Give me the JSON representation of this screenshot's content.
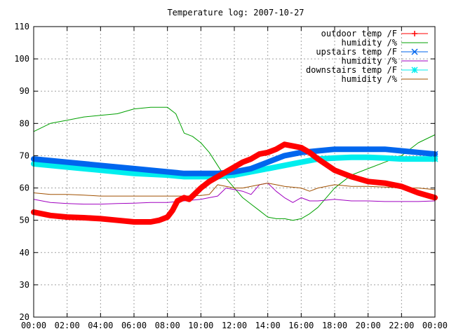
{
  "chart_data": {
    "type": "line",
    "title": "Temperature log: 2007-10-27",
    "xlabel": "",
    "ylabel": "",
    "x_ticks": [
      "00:00",
      "02:00",
      "04:00",
      "06:00",
      "08:00",
      "10:00",
      "12:00",
      "14:00",
      "16:00",
      "18:00",
      "20:00",
      "22:00",
      "00:00"
    ],
    "xlim": [
      0,
      24
    ],
    "ylim": [
      20,
      110
    ],
    "y_ticks": [
      20,
      30,
      40,
      50,
      60,
      70,
      80,
      90,
      100,
      110
    ],
    "grid": true,
    "legend_position": "top-right",
    "series": [
      {
        "name": "outdoor temp /F",
        "color": "#ff0000",
        "marker": "plus",
        "style": "thick",
        "x": [
          0,
          1,
          2,
          3,
          4,
          5,
          6,
          7,
          7.5,
          8,
          8.3,
          8.6,
          9,
          9.3,
          9.6,
          10,
          10.5,
          11,
          11.5,
          12,
          12.5,
          13,
          13.5,
          14,
          14.5,
          15,
          15.5,
          16,
          16.5,
          17,
          18,
          19,
          20,
          21,
          22,
          23,
          24
        ],
        "y": [
          52.5,
          51.5,
          51,
          50.8,
          50.5,
          50,
          49.5,
          49.5,
          50,
          51,
          53,
          56,
          57,
          56.5,
          58,
          60,
          62,
          63.5,
          65,
          66.5,
          68,
          69,
          70.5,
          71,
          72,
          73.5,
          73,
          72.5,
          71,
          69,
          65.5,
          63.5,
          62,
          61.5,
          60.5,
          58.5,
          57
        ]
      },
      {
        "name": "humidity /%",
        "color": "#00a000",
        "marker": "none",
        "style": "thin",
        "x": [
          0,
          1,
          2,
          3,
          4,
          5,
          6,
          7,
          8,
          8.5,
          9,
          9.5,
          10,
          10.5,
          11,
          11.5,
          12,
          12.5,
          13,
          13.5,
          14,
          14.5,
          15,
          15.5,
          16,
          16.5,
          17,
          17.5,
          18,
          18.5,
          19,
          20,
          21,
          22,
          23,
          24
        ],
        "y": [
          77.5,
          80,
          81,
          82,
          82.5,
          83,
          84.5,
          85,
          85,
          83,
          77,
          76,
          74,
          71,
          67,
          63,
          60,
          57,
          55,
          53,
          51,
          50.5,
          50.5,
          50,
          50.5,
          52,
          54,
          57,
          60,
          62,
          64,
          66,
          68,
          70,
          74,
          76.5
        ]
      },
      {
        "name": "upstairs temp /F",
        "color": "#0066ee",
        "marker": "cross",
        "style": "thick",
        "x": [
          0,
          2,
          4,
          6,
          8,
          9,
          10,
          11,
          12,
          13,
          14,
          15,
          16,
          17,
          18,
          19,
          20,
          21,
          22,
          23,
          24
        ],
        "y": [
          69,
          68,
          67,
          66,
          65,
          64.5,
          64.5,
          64.5,
          65,
          66,
          68,
          70,
          71,
          71.5,
          72,
          72,
          72,
          72,
          71.5,
          71,
          70.5
        ]
      },
      {
        "name": "humidity /%",
        "color": "#a000c0",
        "marker": "none",
        "style": "thin",
        "x": [
          0,
          1,
          2,
          3,
          4,
          5,
          6,
          7,
          8,
          9,
          10,
          10.5,
          11,
          11.5,
          12,
          12.5,
          13,
          13.5,
          14,
          14.5,
          15,
          15.5,
          16,
          16.5,
          17,
          18,
          19,
          20,
          21,
          22,
          23,
          24
        ],
        "y": [
          56.5,
          55.5,
          55.2,
          55,
          55,
          55.2,
          55.3,
          55.5,
          55.5,
          56,
          56.5,
          57,
          57.5,
          60,
          59.5,
          59,
          58,
          61,
          61.5,
          59,
          57,
          55.5,
          57,
          56,
          56,
          56.5,
          56,
          56,
          55.8,
          55.8,
          55.8,
          56
        ]
      },
      {
        "name": "downstairs temp /F",
        "color": "#00eeee",
        "marker": "star",
        "style": "thick",
        "x": [
          0,
          2,
          4,
          6,
          8,
          9,
          10,
          11,
          12,
          13,
          14,
          15,
          16,
          17,
          18,
          19,
          20,
          21,
          22,
          23,
          24
        ],
        "y": [
          67.5,
          66.5,
          65.5,
          64.5,
          64,
          63.5,
          63.5,
          63.5,
          64,
          65,
          66,
          67,
          68,
          69,
          69.3,
          69.5,
          69.5,
          69.3,
          69,
          69,
          69
        ]
      },
      {
        "name": "humidity /%",
        "color": "#a05000",
        "marker": "none",
        "style": "thin",
        "x": [
          0,
          1,
          2,
          3,
          4,
          5,
          6,
          7,
          8,
          9,
          10,
          10.5,
          11,
          11.5,
          12,
          12.5,
          13,
          13.5,
          14,
          14.5,
          15,
          16,
          16.5,
          17,
          17.5,
          18,
          19,
          20,
          21,
          22,
          23,
          24
        ],
        "y": [
          58.5,
          58,
          58,
          57.8,
          57.5,
          57.5,
          57.5,
          57.5,
          57.5,
          57.5,
          57.7,
          58,
          61,
          60.5,
          60,
          60,
          60.5,
          61,
          61.5,
          61,
          60.5,
          60,
          59,
          60,
          60.5,
          61,
          60.5,
          60.5,
          60.3,
          60,
          60,
          59.5
        ]
      }
    ]
  }
}
